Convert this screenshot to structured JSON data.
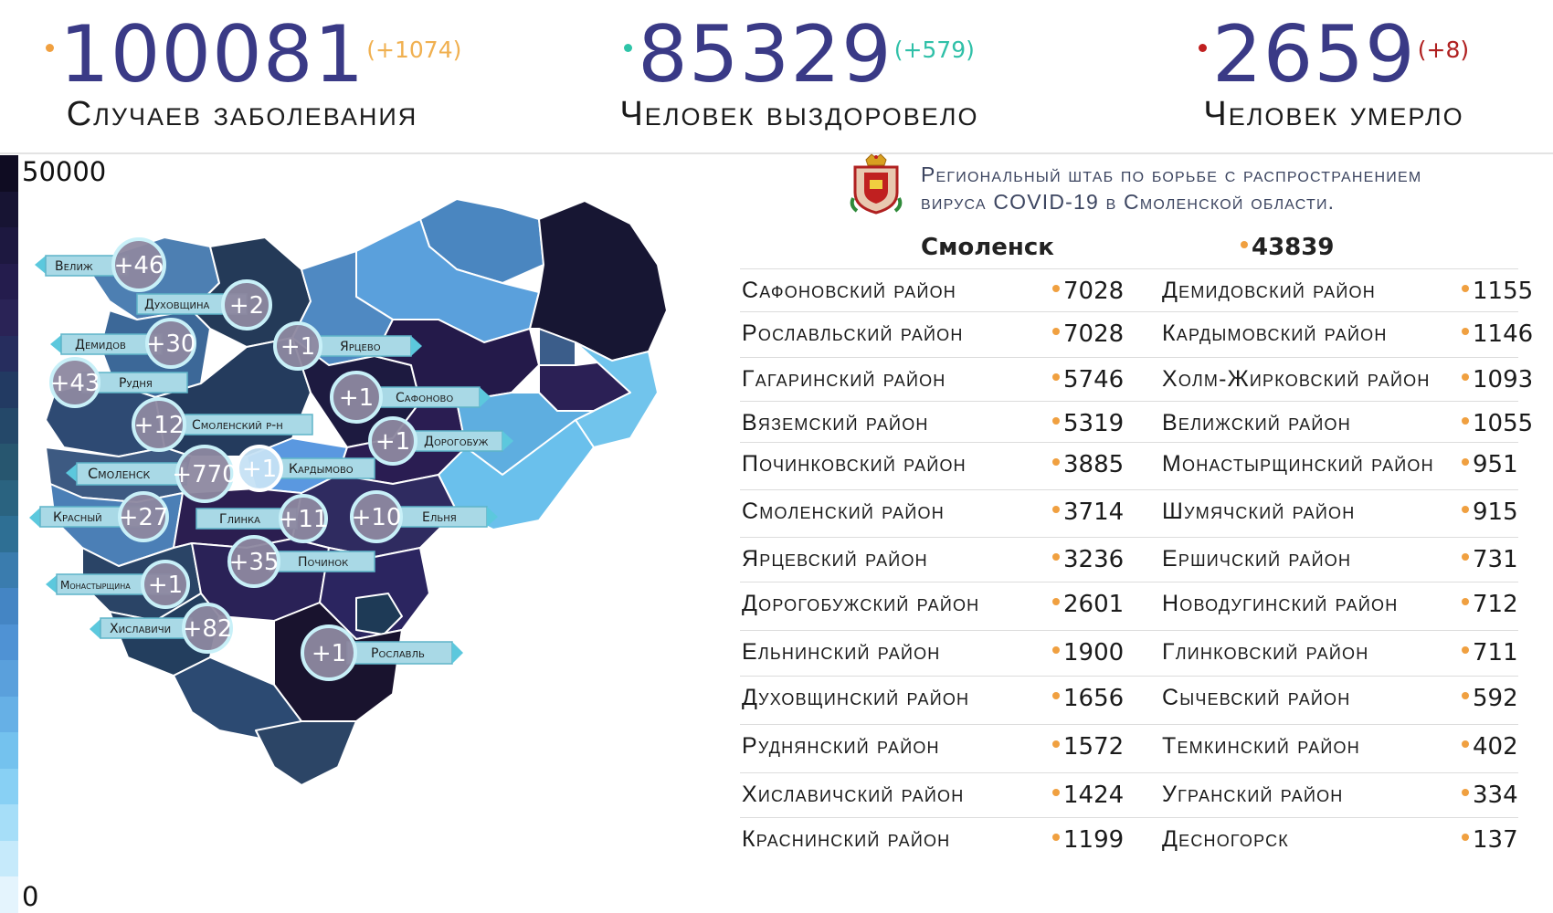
{
  "stats": {
    "cases": {
      "value": "100081",
      "delta": "(+1074)",
      "caption": "Случаев заболевания",
      "color": "#f0a040"
    },
    "recovered": {
      "value": "85329",
      "delta": "(+579)",
      "caption": "Человек выздоровело",
      "color": "#2ec4a8"
    },
    "deaths": {
      "value": "2659",
      "delta": "(+8)",
      "caption": "Человек умерло",
      "color": "#c02020"
    }
  },
  "legend": {
    "max": "50000",
    "min": "0"
  },
  "header": {
    "line1": "Региональный штаб по борьбе с распространением",
    "line2": "вируса COVID-19 в Смоленской области.",
    "emblem_icon": "smolensk-coat-of-arms-icon"
  },
  "city": {
    "name": "Смоленск",
    "value": "43839"
  },
  "table": [
    {
      "left": "Сафоновский район",
      "lv": "7028",
      "right": "Демидовский район",
      "rv": "1155"
    },
    {
      "left": "Рославльский район",
      "lv": "7028",
      "right": "Кардымовский район",
      "rv": "1146"
    },
    {
      "left": "Гагаринский район",
      "lv": "5746",
      "right": "Холм-Жирковский район",
      "rv": "1093"
    },
    {
      "left": "Вяземский район",
      "lv": "5319",
      "right": "Велижский район",
      "rv": "1055"
    },
    {
      "left": "Починковский район",
      "lv": "3885",
      "right": "Монастырщинский район",
      "rv": "951"
    },
    {
      "left": "Смоленский район",
      "lv": "3714",
      "right": "Шумячский район",
      "rv": "915"
    },
    {
      "left": "Ярцевский район",
      "lv": "3236",
      "right": "Ершичский район",
      "rv": "731"
    },
    {
      "left": "Дорогобужский район",
      "lv": "2601",
      "right": "Новодугинский район",
      "rv": "712"
    },
    {
      "left": "Ельнинский район",
      "lv": "1900",
      "right": "Глинковский район",
      "rv": "711"
    },
    {
      "left": "Духовщинский район",
      "lv": "1656",
      "right": "Сычевский район",
      "rv": "592"
    },
    {
      "left": "Руднянский район",
      "lv": "1572",
      "right": "Темкинский район",
      "rv": "402"
    },
    {
      "left": "Хиславичский район",
      "lv": "1424",
      "right": "Угранский район",
      "rv": "334"
    },
    {
      "left": "Краснинский район",
      "lv": "1199",
      "right": "Десногорск",
      "rv": "137"
    }
  ],
  "map_labels": [
    {
      "name": "Велиж",
      "delta": "+46"
    },
    {
      "name": "Духовщина",
      "delta": "+2"
    },
    {
      "name": "Демидов",
      "delta": "+30"
    },
    {
      "name": "Ярцево",
      "delta": "+1"
    },
    {
      "name": "Рудня",
      "delta": "+43"
    },
    {
      "name": "Сафоново",
      "delta": "+1"
    },
    {
      "name": "Смоленский р-н",
      "delta": "+12"
    },
    {
      "name": "Дорогобуж",
      "delta": "+1"
    },
    {
      "name": "Смоленск",
      "delta": "+770"
    },
    {
      "name": "Кардымово",
      "delta": "+1"
    },
    {
      "name": "Красный",
      "delta": "+27"
    },
    {
      "name": "Глинка",
      "delta": "+11"
    },
    {
      "name": "Ельня",
      "delta": "+10"
    },
    {
      "name": "Починок",
      "delta": "+35"
    },
    {
      "name": "Монастырщина",
      "delta": "+1"
    },
    {
      "name": "Хиславичи",
      "delta": "+82"
    },
    {
      "name": "Рославль",
      "delta": "+1"
    }
  ]
}
